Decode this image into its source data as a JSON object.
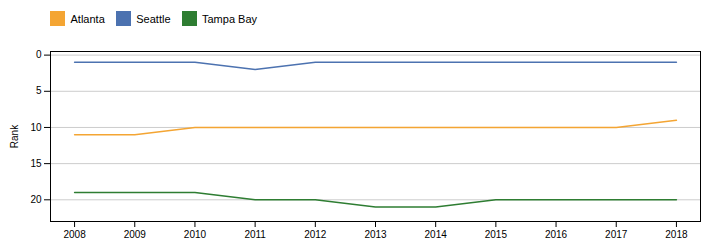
{
  "chart_data": {
    "type": "line",
    "x": [
      2008,
      2009,
      2010,
      2011,
      2012,
      2013,
      2014,
      2015,
      2016,
      2017,
      2018
    ],
    "series": [
      {
        "name": "Atlanta",
        "color": "#F4A533",
        "values": [
          11,
          11,
          10,
          10,
          10,
          10,
          10,
          10,
          10,
          10,
          9
        ]
      },
      {
        "name": "Seattle",
        "color": "#4C72B0",
        "values": [
          1,
          1,
          1,
          2,
          1,
          1,
          1,
          1,
          1,
          1,
          1
        ]
      },
      {
        "name": "Tampa Bay",
        "color": "#2E7D32",
        "values": [
          19,
          19,
          19,
          20,
          20,
          21,
          21,
          20,
          20,
          20,
          20
        ]
      }
    ],
    "ylabel": "Rank",
    "xlim": [
      2007.6,
      2018.4
    ],
    "xticks": [
      2008,
      2009,
      2010,
      2011,
      2012,
      2013,
      2014,
      2015,
      2016,
      2017,
      2018
    ],
    "ylim": [
      23,
      -0.5
    ],
    "yticks": [
      0,
      5,
      10,
      15,
      20
    ],
    "grid": "y",
    "legend": "upper left"
  }
}
